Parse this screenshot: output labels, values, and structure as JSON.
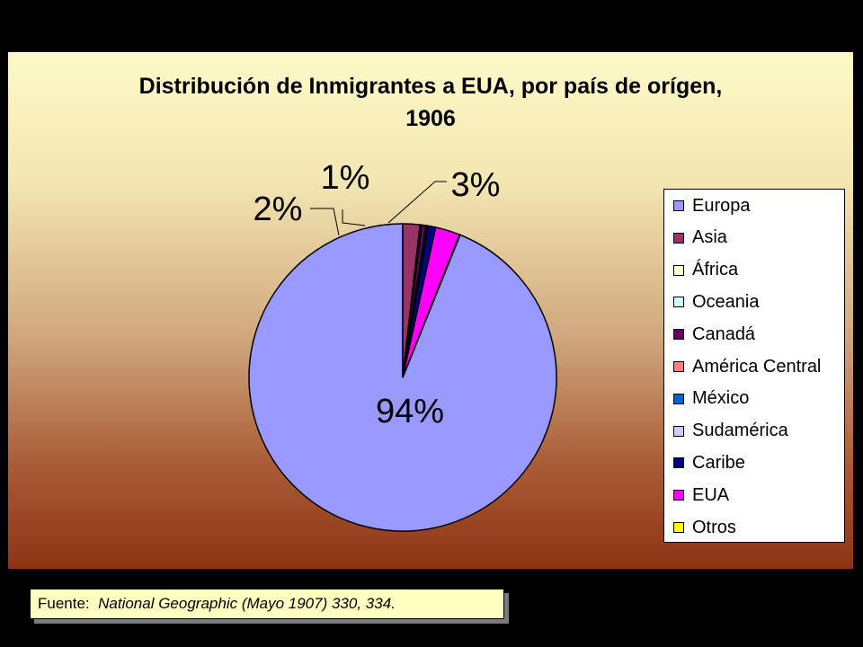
{
  "chart_data": {
    "type": "pie",
    "title": "Distribución de Inmigrantes a EUA, por país de orígen, 1906",
    "title_lines": [
      "Distribución de Inmigrantes a EUA, por país de orígen,",
      "1906"
    ],
    "legend_position": "right",
    "slices": [
      {
        "label": "Europa",
        "value": 94,
        "color": "#9999ff"
      },
      {
        "label": "Asia",
        "value": 1.8,
        "color": "#993366"
      },
      {
        "label": "África",
        "value": 0.1,
        "color": "#ffffcc"
      },
      {
        "label": "Oceania",
        "value": 0.1,
        "color": "#ccffff"
      },
      {
        "label": "Canadá",
        "value": 0.4,
        "color": "#660066"
      },
      {
        "label": "América Central",
        "value": 0.05,
        "color": "#ff8080"
      },
      {
        "label": "México",
        "value": 0.15,
        "color": "#0066cc"
      },
      {
        "label": "Sudamérica",
        "value": 0.05,
        "color": "#ccccff"
      },
      {
        "label": "Caribe",
        "value": 0.8,
        "color": "#000080"
      },
      {
        "label": "EUA",
        "value": 2.6,
        "color": "#ff00ff"
      },
      {
        "label": "Otros",
        "value": 0.05,
        "color": "#ffff00"
      }
    ],
    "data_labels": [
      {
        "text": "94%"
      },
      {
        "text": "2%"
      },
      {
        "text": "1%"
      },
      {
        "text": "3%"
      }
    ]
  },
  "source": {
    "prefix": "Fuente:",
    "citation": "National Geographic (Mayo 1907) 330, 334."
  }
}
